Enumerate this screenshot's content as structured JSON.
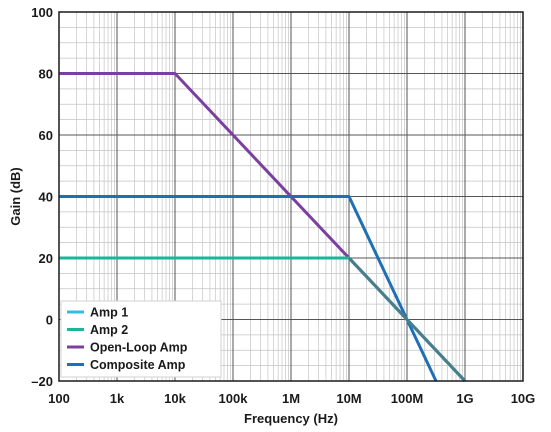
{
  "chart_data": {
    "type": "line",
    "xscale": "log",
    "xlabel": "Frequency (Hz)",
    "ylabel": "Gain (dB)",
    "xlim": [
      100,
      10000000000
    ],
    "ylim": [
      -20,
      100
    ],
    "x_ticks": [
      100,
      1000,
      10000,
      100000,
      1000000,
      10000000,
      100000000,
      1000000000,
      10000000000
    ],
    "x_tick_labels": [
      "100",
      "1k",
      "10k",
      "100k",
      "1M",
      "10M",
      "100M",
      "1G",
      "10G"
    ],
    "y_ticks": [
      -20,
      0,
      20,
      40,
      60,
      80,
      100
    ],
    "y_tick_labels": [
      "–20",
      "0",
      "20",
      "40",
      "60",
      "80",
      "100"
    ],
    "grid": true,
    "legend_position": "bottom-left",
    "series": [
      {
        "name": "Amp 1",
        "color": "#32bedf",
        "points": [
          [
            100,
            20
          ],
          [
            10000000,
            20
          ],
          [
            1000000000,
            -20
          ]
        ]
      },
      {
        "name": "Amp 2",
        "color": "#1db59a",
        "points": [
          [
            100,
            20
          ],
          [
            10000000,
            20
          ],
          [
            1000000000,
            -20
          ]
        ]
      },
      {
        "name": "Open-Loop Amp",
        "color": "#7b3fa0",
        "points": [
          [
            100,
            80
          ],
          [
            10000,
            80
          ],
          [
            1000000000,
            -20
          ]
        ]
      },
      {
        "name": "Composite Amp",
        "color": "#1f6fb6",
        "points": [
          [
            100,
            40
          ],
          [
            10000000,
            40
          ],
          [
            316227766,
            -20
          ]
        ]
      }
    ],
    "overlap_color": "#4a7d8c"
  }
}
